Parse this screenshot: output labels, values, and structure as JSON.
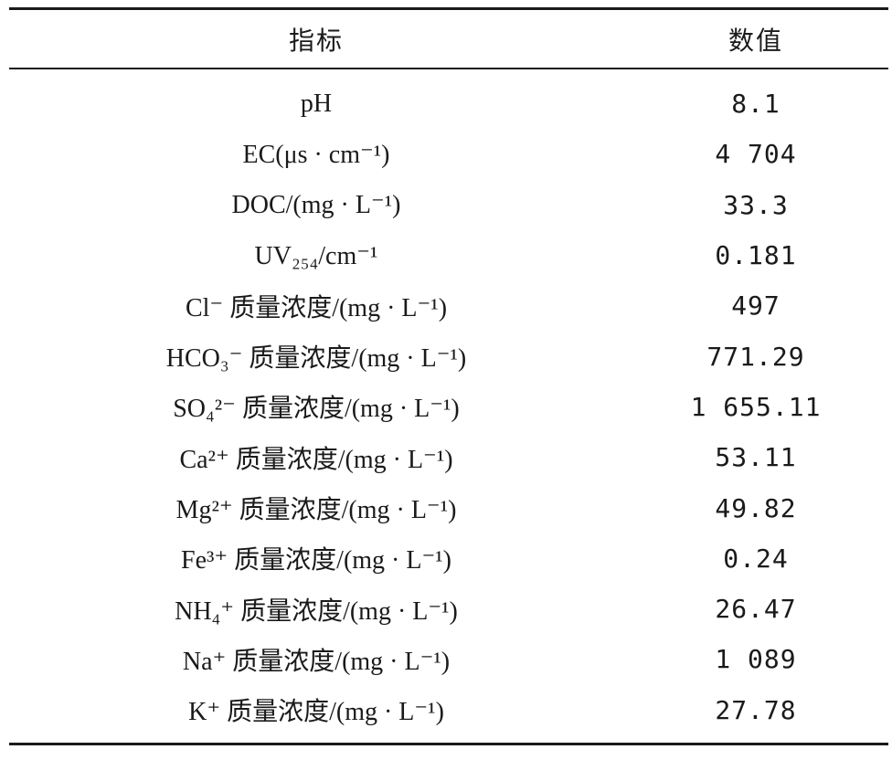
{
  "table": {
    "headers": [
      "指标",
      "数值"
    ],
    "rows": [
      {
        "indicator": "pH",
        "value": "8.1"
      },
      {
        "indicator": "EC(μs · cm⁻¹)",
        "value": "4 704"
      },
      {
        "indicator": "DOC/(mg · L⁻¹)",
        "value": "33.3"
      },
      {
        "indicator": "UV₂₅₄/cm⁻¹",
        "value": "0.181"
      },
      {
        "indicator": "Cl⁻ 质量浓度/(mg · L⁻¹)",
        "value": "497"
      },
      {
        "indicator": "HCO₃⁻ 质量浓度/(mg · L⁻¹)",
        "value": "771.29"
      },
      {
        "indicator": "SO₄²⁻ 质量浓度/(mg · L⁻¹)",
        "value": "1 655.11"
      },
      {
        "indicator": "Ca²⁺ 质量浓度/(mg · L⁻¹)",
        "value": "53.11"
      },
      {
        "indicator": "Mg²⁺ 质量浓度/(mg · L⁻¹)",
        "value": "49.82"
      },
      {
        "indicator": "Fe³⁺ 质量浓度/(mg · L⁻¹)",
        "value": "0.24"
      },
      {
        "indicator": "NH₄⁺ 质量浓度/(mg · L⁻¹)",
        "value": "26.47"
      },
      {
        "indicator": "Na⁺ 质量浓度/(mg · L⁻¹)",
        "value": "1 089"
      },
      {
        "indicator": "K⁺ 质量浓度/(mg · L⁻¹)",
        "value": "27.78"
      }
    ]
  }
}
